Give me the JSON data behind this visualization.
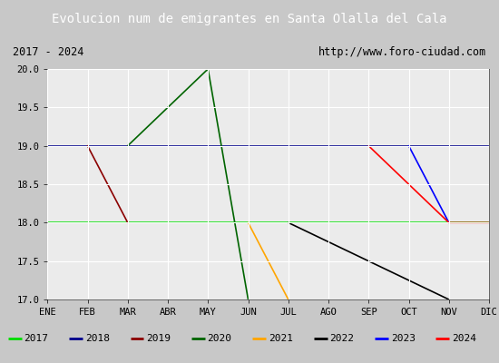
{
  "title": "Evolucion num de emigrantes en Santa Olalla del Cala",
  "subtitle_left": "2017 - 2024",
  "subtitle_right": "http://www.foro-ciudad.com",
  "x_labels": [
    "ENE",
    "FEB",
    "MAR",
    "ABR",
    "MAY",
    "JUN",
    "JUL",
    "AGO",
    "SEP",
    "OCT",
    "NOV",
    "DIC"
  ],
  "ylim": [
    17.0,
    20.0
  ],
  "yticks": [
    17.0,
    17.5,
    18.0,
    18.5,
    19.0,
    19.5,
    20.0
  ],
  "title_bg": "#4e86c8",
  "title_color": "white",
  "subtitle_bg": "white",
  "subtitle_border": "#4e86c8",
  "plot_bg": "#ebebeb",
  "fig_bg": "#c8c8c8",
  "legend_bg": "white",
  "legend_border": "#4e86c8",
  "grid_color": "white",
  "series": [
    {
      "year": "2017",
      "color": "#00dd00",
      "points": [
        [
          1,
          18
        ],
        [
          12,
          18
        ]
      ]
    },
    {
      "year": "2018",
      "color": "#00008b",
      "points": [
        [
          1,
          19
        ],
        [
          12,
          19
        ]
      ]
    },
    {
      "year": "2019",
      "color": "#8b0000",
      "points": [
        [
          2,
          19
        ],
        [
          3,
          18
        ]
      ]
    },
    {
      "year": "2020",
      "color": "#006400",
      "points": [
        [
          3,
          19
        ],
        [
          5,
          20
        ],
        [
          6,
          17
        ]
      ]
    },
    {
      "year": "2021",
      "color": "#ffa500",
      "points": [
        [
          6,
          18
        ],
        [
          7,
          17
        ]
      ]
    },
    {
      "year": "2022",
      "color": "#000000",
      "points": [
        [
          7,
          18
        ],
        [
          11,
          17
        ]
      ]
    },
    {
      "year": "2023",
      "color": "#0000ff",
      "points": [
        [
          10,
          19
        ],
        [
          11,
          18
        ]
      ]
    },
    {
      "year": "2024",
      "color": "#ff0000",
      "points": [
        [
          9,
          19
        ],
        [
          11,
          18
        ],
        [
          12,
          18
        ]
      ]
    }
  ]
}
